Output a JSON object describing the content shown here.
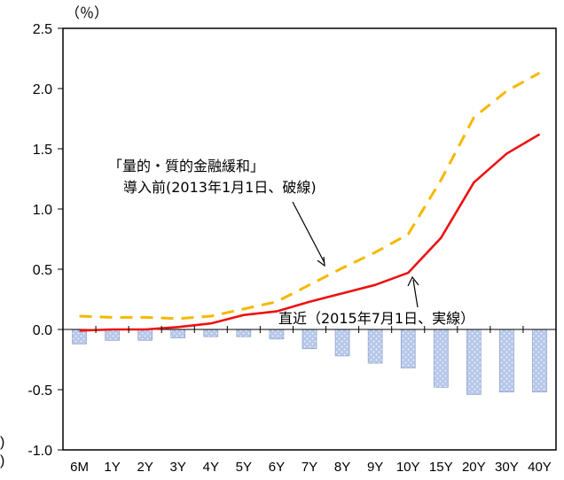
{
  "chart_data": {
    "type": "line",
    "unit_label": "（％）",
    "categories": [
      "6M",
      "1Y",
      "2Y",
      "3Y",
      "4Y",
      "5Y",
      "6Y",
      "7Y",
      "8Y",
      "9Y",
      "10Y",
      "15Y",
      "20Y",
      "30Y",
      "40Y"
    ],
    "ylim": [
      -1.0,
      2.5
    ],
    "yticks": [
      "2.5",
      "2.0",
      "1.5",
      "1.0",
      "0.5",
      "0.0",
      "-0.5",
      "-1.0"
    ],
    "series": [
      {
        "kind": "line-dashed",
        "color": "#f5b800",
        "values": [
          0.11,
          0.1,
          0.1,
          0.09,
          0.11,
          0.17,
          0.23,
          0.37,
          0.51,
          0.64,
          0.79,
          1.24,
          1.76,
          1.98,
          2.13
        ]
      },
      {
        "kind": "line-solid",
        "color": "#ee1111",
        "values": [
          -0.01,
          0.0,
          0.0,
          0.02,
          0.05,
          0.12,
          0.15,
          0.23,
          0.3,
          0.37,
          0.47,
          0.76,
          1.22,
          1.46,
          1.62
        ]
      },
      {
        "kind": "bar",
        "color": "#b7c8ea",
        "values": [
          -0.12,
          -0.09,
          -0.09,
          -0.07,
          -0.06,
          -0.06,
          -0.08,
          -0.16,
          -0.22,
          -0.28,
          -0.32,
          -0.48,
          -0.54,
          -0.52,
          -0.52
        ]
      }
    ],
    "annotations": {
      "pre_qqe_line1": "「量的・質的金融緩和」",
      "pre_qqe_line2": "導入前(2013年1月1日、破線)",
      "recent": "直近（2015年7月1日、実線）"
    },
    "left_margin_marks": [
      ")",
      ")"
    ],
    "colors": {
      "frame": "#000000",
      "bar_fill": "#b7c8ea",
      "bar_dot": "#ffffff"
    }
  }
}
